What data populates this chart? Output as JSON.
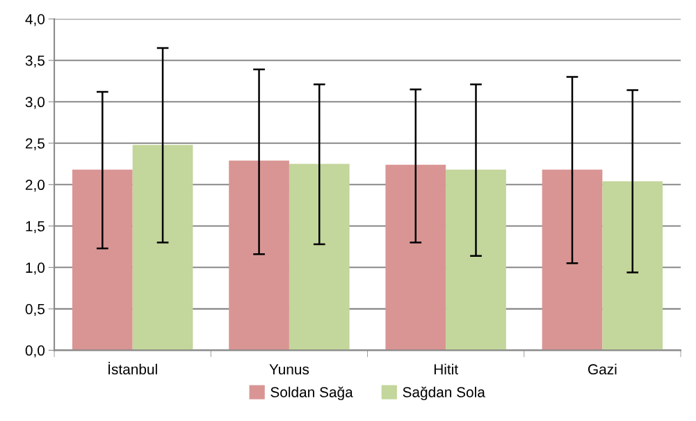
{
  "chart_data": {
    "type": "bar",
    "categories": [
      "İstanbul",
      "Yunus",
      "Hitit",
      "Gazi"
    ],
    "series": [
      {
        "name": "Soldan Sağa",
        "color": "#d99594",
        "values": [
          2.18,
          2.29,
          2.24,
          2.18
        ],
        "errors": [
          [
            1.23,
            3.12
          ],
          [
            1.16,
            3.39
          ],
          [
            1.3,
            3.15
          ],
          [
            1.05,
            3.3
          ]
        ]
      },
      {
        "name": "Sağdan Sola",
        "color": "#c3d69b",
        "values": [
          2.48,
          2.25,
          2.18,
          2.04
        ],
        "errors": [
          [
            1.3,
            3.65
          ],
          [
            1.28,
            3.21
          ],
          [
            1.14,
            3.21
          ],
          [
            0.94,
            3.14
          ]
        ]
      }
    ],
    "ylim": [
      0,
      4
    ],
    "yticks": [
      {
        "value": 0,
        "label": "0,0"
      },
      {
        "value": 0.5,
        "label": "0,5"
      },
      {
        "value": 1,
        "label": "1,0"
      },
      {
        "value": 1.5,
        "label": "1,5"
      },
      {
        "value": 2,
        "label": "2,0"
      },
      {
        "value": 2.5,
        "label": "2,5"
      },
      {
        "value": 3,
        "label": "3,0"
      },
      {
        "value": 3.5,
        "label": "3,5"
      },
      {
        "value": 4,
        "label": "4,0"
      }
    ],
    "grid": "y",
    "legend": "bottom"
  }
}
